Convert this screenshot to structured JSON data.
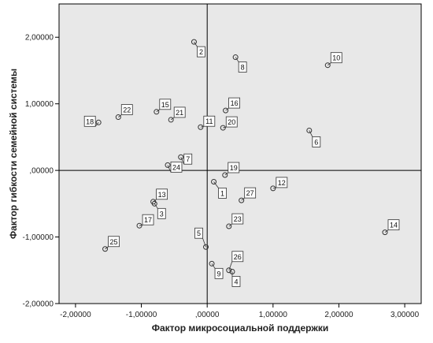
{
  "chart_data": {
    "type": "scatter",
    "xlabel": "Фактор микросоциальной поддержки",
    "ylabel": "Фактор гибкости семейной системы",
    "xlim": [
      -2.25,
      3.25
    ],
    "ylim": [
      -2.0,
      2.5
    ],
    "x_ticks": [
      -2,
      -1,
      0,
      1,
      2,
      3
    ],
    "y_ticks": [
      -2,
      -1,
      0,
      1,
      2
    ],
    "x_tick_labels": [
      "-2,00000",
      "-1,00000",
      ",00000",
      "1,00000",
      "2,00000",
      "3,00000"
    ],
    "y_tick_labels": [
      "-2,00000",
      "-1,00000",
      ",00000",
      "1,00000",
      "2,00000"
    ],
    "reference_lines": {
      "x": 0,
      "y": 0
    },
    "grid": false,
    "colors": {
      "plot_bg": "#e8e8e8",
      "point": "#333333",
      "axis": "#000000"
    },
    "points": [
      {
        "label": "1",
        "x": 0.1,
        "y": -0.17
      },
      {
        "label": "2",
        "x": -0.2,
        "y": 1.93
      },
      {
        "label": "3",
        "x": -0.8,
        "y": -0.5
      },
      {
        "label": "4",
        "x": 0.38,
        "y": -1.52
      },
      {
        "label": "5",
        "x": -0.02,
        "y": -1.15
      },
      {
        "label": "6",
        "x": 1.55,
        "y": 0.6
      },
      {
        "label": "7",
        "x": -0.4,
        "y": 0.2
      },
      {
        "label": "8",
        "x": 0.43,
        "y": 1.7
      },
      {
        "label": "9",
        "x": 0.07,
        "y": -1.4
      },
      {
        "label": "10",
        "x": 1.83,
        "y": 1.58
      },
      {
        "label": "11",
        "x": -0.1,
        "y": 0.65
      },
      {
        "label": "12",
        "x": 1.0,
        "y": -0.27
      },
      {
        "label": "13",
        "x": -0.82,
        "y": -0.47
      },
      {
        "label": "14",
        "x": 2.7,
        "y": -0.93
      },
      {
        "label": "15",
        "x": -0.77,
        "y": 0.88
      },
      {
        "label": "16",
        "x": 0.28,
        "y": 0.9
      },
      {
        "label": "17",
        "x": -1.03,
        "y": -0.83
      },
      {
        "label": "18",
        "x": -1.65,
        "y": 0.72
      },
      {
        "label": "19",
        "x": 0.27,
        "y": -0.07
      },
      {
        "label": "20",
        "x": 0.24,
        "y": 0.64
      },
      {
        "label": "21",
        "x": -0.55,
        "y": 0.76
      },
      {
        "label": "22",
        "x": -1.35,
        "y": 0.8
      },
      {
        "label": "23",
        "x": 0.33,
        "y": -0.84
      },
      {
        "label": "24",
        "x": -0.6,
        "y": 0.08
      },
      {
        "label": "25",
        "x": -1.55,
        "y": -1.18
      },
      {
        "label": "26",
        "x": 0.33,
        "y": -1.5
      },
      {
        "label": "27",
        "x": 0.52,
        "y": -0.45
      }
    ]
  }
}
